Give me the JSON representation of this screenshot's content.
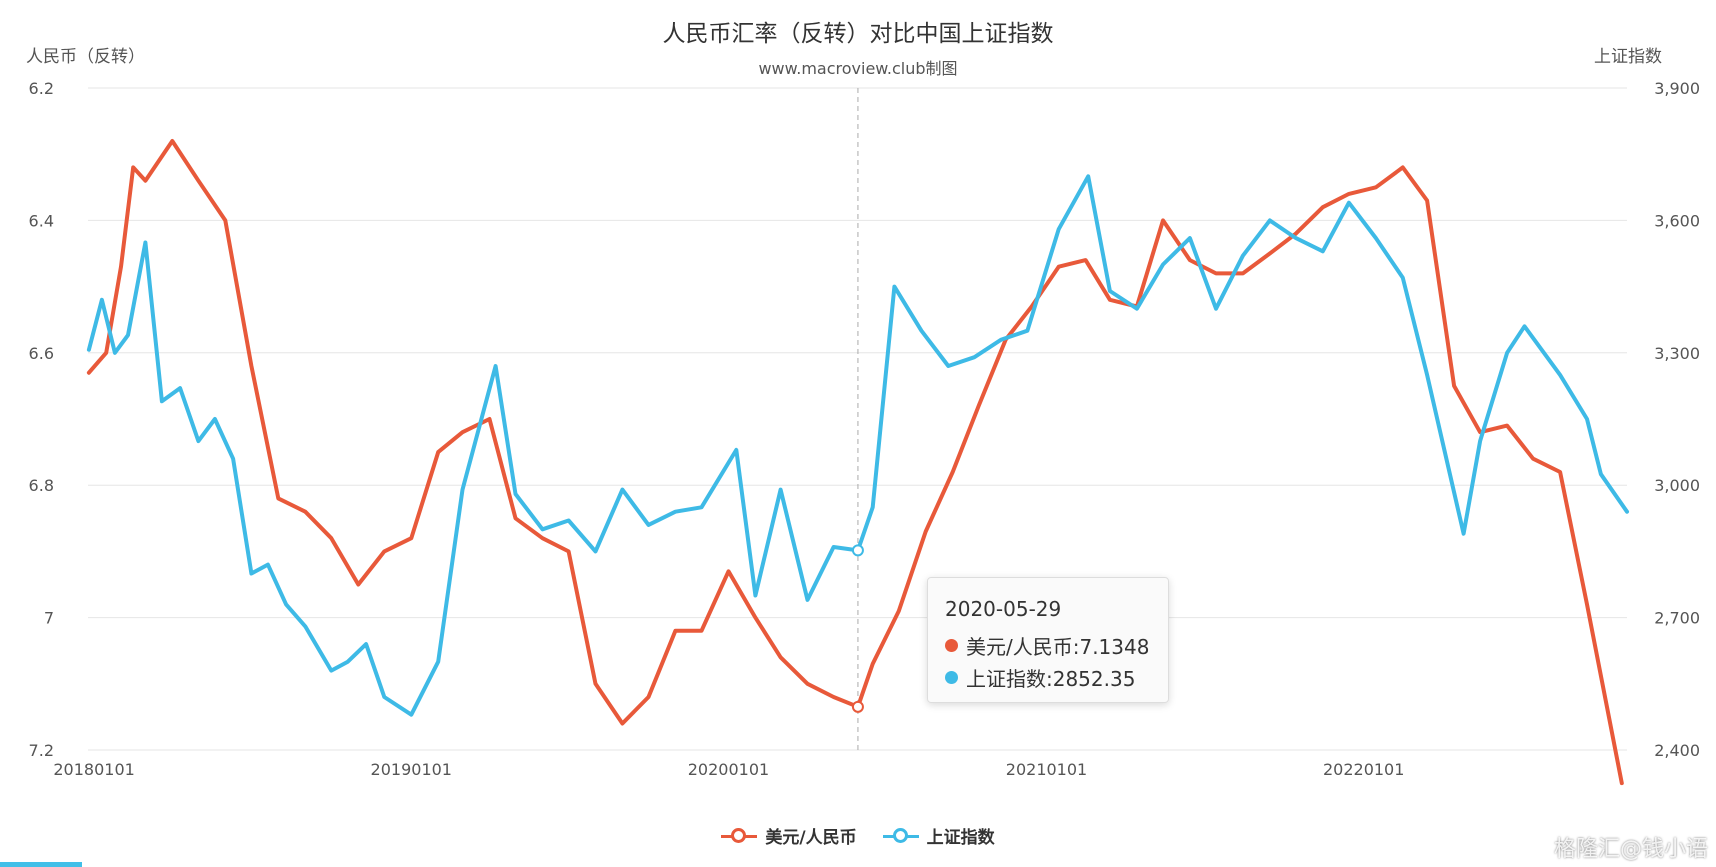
{
  "colors": {
    "series1": "#e8593a",
    "series2": "#3ebae6",
    "grid": "#e6e6e6",
    "axis_text": "#555555"
  },
  "chart_data": {
    "type": "line",
    "title": "人民币汇率（反转）对比中国上证指数",
    "subtitle": "www.macroview.club制图",
    "y_left": {
      "name": "人民币（反转）",
      "inverse": true,
      "range": [
        6.2,
        7.2
      ],
      "ticks": [
        "6.2",
        "6.4",
        "6.6",
        "6.8",
        "7",
        "7.2"
      ]
    },
    "y_right": {
      "name": "上证指数",
      "range": [
        2400,
        3900
      ],
      "ticks": [
        "3,900",
        "3,600",
        "3,300",
        "3,000",
        "2,700",
        "2,400"
      ]
    },
    "x_range": [
      "2017-12-25",
      "2022-10-31"
    ],
    "x_ticks": [
      "20180101",
      "20190101",
      "20200101",
      "20210101",
      "20220101"
    ],
    "grid": true,
    "legend_position": "bottom-center",
    "series": [
      {
        "name": "美元/人民币",
        "axis": "left",
        "points": [
          [
            "2017-12-26",
            6.63
          ],
          [
            "2018-01-15",
            6.6
          ],
          [
            "2018-02-01",
            6.47
          ],
          [
            "2018-02-15",
            6.32
          ],
          [
            "2018-03-01",
            6.34
          ],
          [
            "2018-04-01",
            6.28
          ],
          [
            "2018-05-01",
            6.34
          ],
          [
            "2018-06-01",
            6.4
          ],
          [
            "2018-07-01",
            6.62
          ],
          [
            "2018-08-01",
            6.82
          ],
          [
            "2018-09-01",
            6.84
          ],
          [
            "2018-10-01",
            6.88
          ],
          [
            "2018-11-01",
            6.95
          ],
          [
            "2018-12-01",
            6.9
          ],
          [
            "2019-01-01",
            6.88
          ],
          [
            "2019-02-01",
            6.75
          ],
          [
            "2019-03-01",
            6.72
          ],
          [
            "2019-04-01",
            6.7
          ],
          [
            "2019-05-01",
            6.85
          ],
          [
            "2019-06-01",
            6.88
          ],
          [
            "2019-07-01",
            6.9
          ],
          [
            "2019-08-01",
            7.1
          ],
          [
            "2019-09-01",
            7.16
          ],
          [
            "2019-10-01",
            7.12
          ],
          [
            "2019-11-01",
            7.02
          ],
          [
            "2019-12-01",
            7.02
          ],
          [
            "2020-01-01",
            6.93
          ],
          [
            "2020-02-01",
            7.0
          ],
          [
            "2020-03-01",
            7.06
          ],
          [
            "2020-04-01",
            7.1
          ],
          [
            "2020-05-01",
            7.12
          ],
          [
            "2020-05-29",
            7.1348
          ],
          [
            "2020-06-15",
            7.07
          ],
          [
            "2020-07-15",
            6.99
          ],
          [
            "2020-08-15",
            6.87
          ],
          [
            "2020-09-15",
            6.78
          ],
          [
            "2020-10-15",
            6.68
          ],
          [
            "2020-11-15",
            6.58
          ],
          [
            "2020-12-15",
            6.53
          ],
          [
            "2021-01-15",
            6.47
          ],
          [
            "2021-02-15",
            6.46
          ],
          [
            "2021-03-15",
            6.52
          ],
          [
            "2021-04-15",
            6.53
          ],
          [
            "2021-05-15",
            6.4
          ],
          [
            "2021-06-15",
            6.46
          ],
          [
            "2021-07-15",
            6.48
          ],
          [
            "2021-08-15",
            6.48
          ],
          [
            "2021-09-15",
            6.45
          ],
          [
            "2021-10-15",
            6.42
          ],
          [
            "2021-11-15",
            6.38
          ],
          [
            "2021-12-15",
            6.36
          ],
          [
            "2022-01-15",
            6.35
          ],
          [
            "2022-02-15",
            6.32
          ],
          [
            "2022-03-15",
            6.37
          ],
          [
            "2022-04-15",
            6.65
          ],
          [
            "2022-05-15",
            6.72
          ],
          [
            "2022-06-15",
            6.71
          ],
          [
            "2022-07-15",
            6.76
          ],
          [
            "2022-08-15",
            6.78
          ],
          [
            "2022-09-15",
            6.98
          ],
          [
            "2022-10-25",
            7.25
          ]
        ]
      },
      {
        "name": "上证指数",
        "axis": "right",
        "points": [
          [
            "2017-12-26",
            3307
          ],
          [
            "2018-01-10",
            3420
          ],
          [
            "2018-01-25",
            3300
          ],
          [
            "2018-02-09",
            3340
          ],
          [
            "2018-03-01",
            3550
          ],
          [
            "2018-03-20",
            3190
          ],
          [
            "2018-04-10",
            3220
          ],
          [
            "2018-05-01",
            3100
          ],
          [
            "2018-05-20",
            3150
          ],
          [
            "2018-06-10",
            3060
          ],
          [
            "2018-07-01",
            2800
          ],
          [
            "2018-07-20",
            2820
          ],
          [
            "2018-08-10",
            2730
          ],
          [
            "2018-09-01",
            2680
          ],
          [
            "2018-10-01",
            2580
          ],
          [
            "2018-10-20",
            2600
          ],
          [
            "2018-11-10",
            2640
          ],
          [
            "2018-12-01",
            2520
          ],
          [
            "2019-01-01",
            2480
          ],
          [
            "2019-02-01",
            2600
          ],
          [
            "2019-03-01",
            2990
          ],
          [
            "2019-04-08",
            3270
          ],
          [
            "2019-05-01",
            2980
          ],
          [
            "2019-06-01",
            2900
          ],
          [
            "2019-07-01",
            2920
          ],
          [
            "2019-08-01",
            2850
          ],
          [
            "2019-09-01",
            2990
          ],
          [
            "2019-10-01",
            2910
          ],
          [
            "2019-11-01",
            2940
          ],
          [
            "2019-12-01",
            2950
          ],
          [
            "2020-01-10",
            3080
          ],
          [
            "2020-02-01",
            2750
          ],
          [
            "2020-03-01",
            2990
          ],
          [
            "2020-04-01",
            2740
          ],
          [
            "2020-05-01",
            2860
          ],
          [
            "2020-05-29",
            2852.35
          ],
          [
            "2020-06-15",
            2950
          ],
          [
            "2020-07-10",
            3450
          ],
          [
            "2020-08-10",
            3350
          ],
          [
            "2020-09-10",
            3270
          ],
          [
            "2020-10-10",
            3290
          ],
          [
            "2020-11-10",
            3330
          ],
          [
            "2020-12-10",
            3350
          ],
          [
            "2021-01-15",
            3580
          ],
          [
            "2021-02-18",
            3700
          ],
          [
            "2021-03-15",
            3440
          ],
          [
            "2021-04-15",
            3400
          ],
          [
            "2021-05-15",
            3500
          ],
          [
            "2021-06-15",
            3560
          ],
          [
            "2021-07-15",
            3400
          ],
          [
            "2021-08-15",
            3520
          ],
          [
            "2021-09-15",
            3600
          ],
          [
            "2021-10-15",
            3560
          ],
          [
            "2021-11-15",
            3530
          ],
          [
            "2021-12-15",
            3640
          ],
          [
            "2022-01-15",
            3560
          ],
          [
            "2022-02-15",
            3470
          ],
          [
            "2022-03-15",
            3250
          ],
          [
            "2022-04-26",
            2890
          ],
          [
            "2022-05-15",
            3100
          ],
          [
            "2022-06-15",
            3300
          ],
          [
            "2022-07-05",
            3360
          ],
          [
            "2022-08-15",
            3250
          ],
          [
            "2022-09-15",
            3150
          ],
          [
            "2022-10-01",
            3025
          ],
          [
            "2022-10-31",
            2940
          ]
        ]
      }
    ],
    "tooltip": {
      "date": "2020-05-29",
      "rows": [
        {
          "label": "美元/人民币:7.1348",
          "color": "#e8593a"
        },
        {
          "label": "上证指数:2852.35",
          "color": "#3ebae6"
        }
      ]
    }
  },
  "legend": [
    {
      "label": "美元/人民币"
    },
    {
      "label": "上证指数"
    }
  ],
  "watermark": "格隆汇@钱小语"
}
